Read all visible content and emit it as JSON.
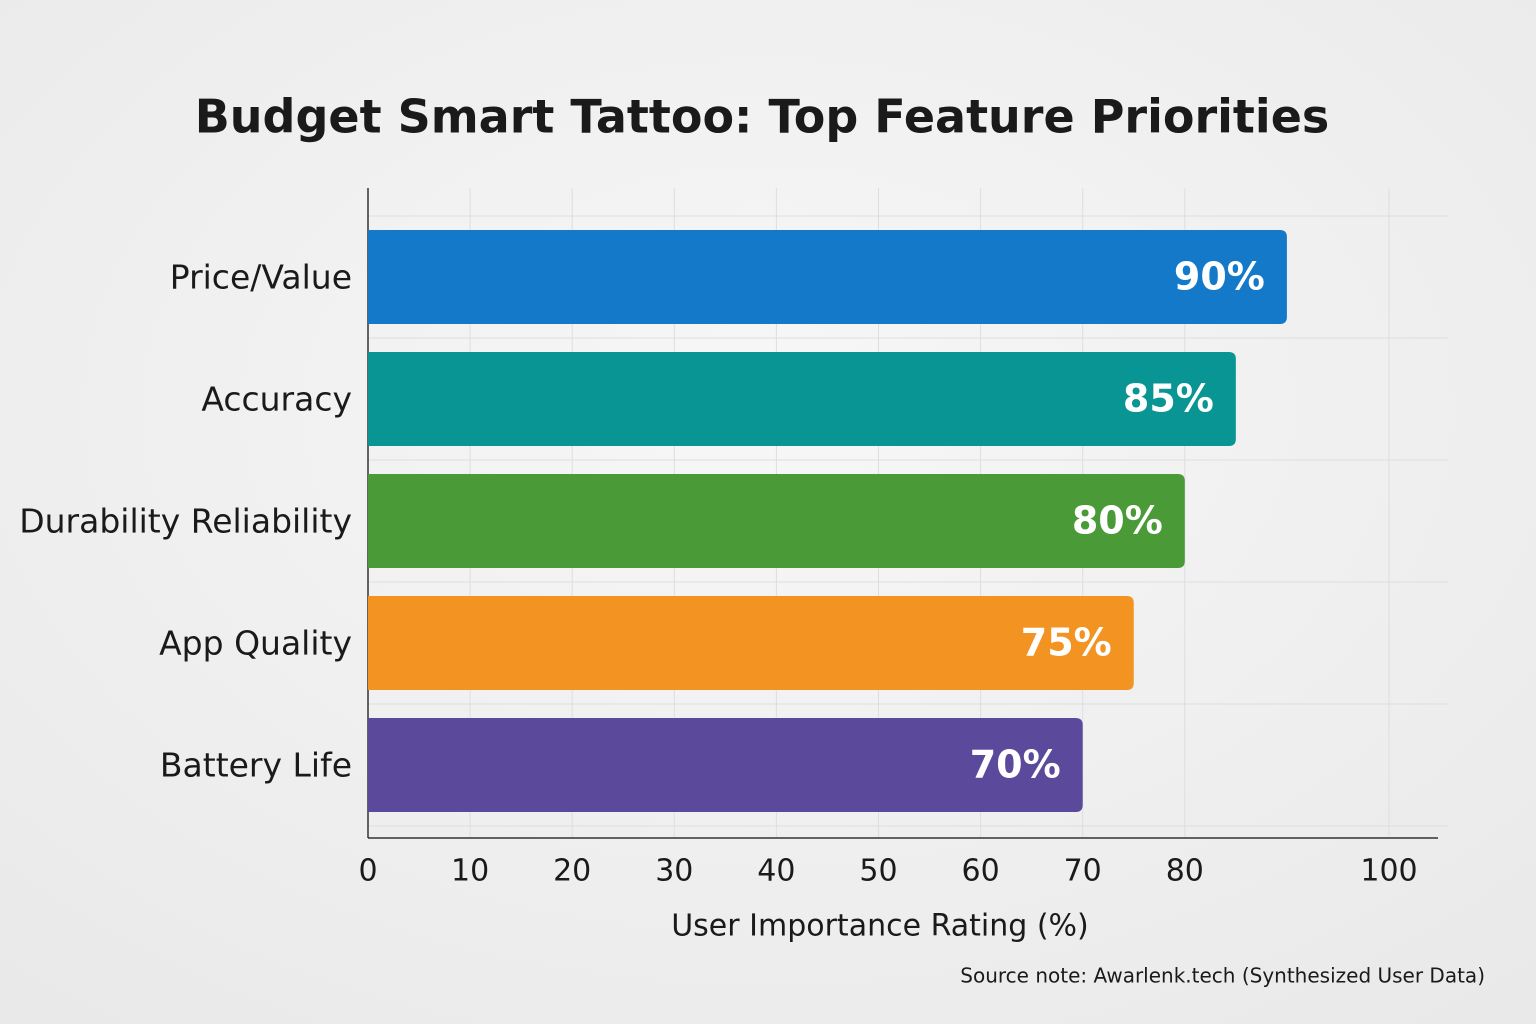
{
  "chart_data": {
    "type": "barh",
    "title": "Budget Smart Tattoo: Top Feature Priorities",
    "categories": [
      "Price/Value",
      "Accuracy",
      "Durability Reliability",
      "App Quality",
      "Battery Life"
    ],
    "values": [
      90,
      85,
      80,
      75,
      70
    ],
    "value_labels": [
      "90%",
      "85%",
      "80%",
      "75%",
      "70%"
    ],
    "colors": [
      "#1479c9",
      "#089593",
      "#4a9a38",
      "#f39322",
      "#5b4a9c"
    ],
    "xlabel": "User Importance Rating (%)",
    "xlim": [
      0,
      100
    ],
    "xticks": [
      0,
      10,
      20,
      30,
      40,
      50,
      60,
      70,
      80,
      100
    ],
    "grid": true,
    "source": "Source note: Awarlenk.tech (Synthesized User Data)"
  }
}
